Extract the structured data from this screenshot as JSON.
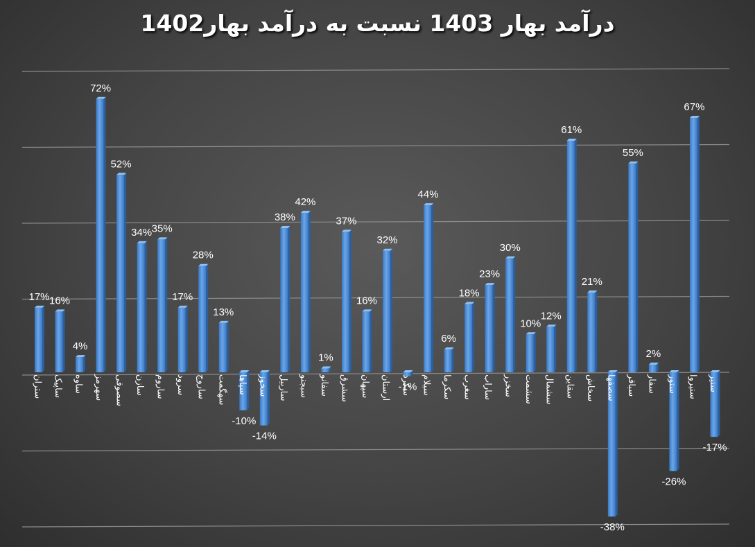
{
  "chart_data": {
    "type": "bar",
    "title": "درآمد بهار 1403 نسبت به درآمد بهار1402",
    "xlabel": "",
    "ylabel": "",
    "ylim": [
      -0.4,
      0.8
    ],
    "grid": true,
    "legend": "none",
    "bar_color": "#4a8fd8",
    "categories": [
      "ستران",
      "ساپیک",
      "ساوه",
      "سهرمز",
      "سصوفی",
      "سازن",
      "ساروم",
      "سرود",
      "ساروج",
      "سهگمت",
      "سپاها",
      "سخوز",
      "ساربیل",
      "سبجنو",
      "سفانو",
      "سشرق",
      "سپهان",
      "ارستان",
      "سکرد",
      "سیلام",
      "سکرما",
      "سغرب",
      "ساراب",
      "سخزر",
      "سشمت",
      "سشمال",
      "سقاین",
      "سخاش",
      "سصفها",
      "سباقر",
      "سفار",
      "ستور",
      "سنیروا",
      "سنیر"
    ],
    "values": [
      0.17,
      0.16,
      0.04,
      0.72,
      0.52,
      0.34,
      0.35,
      0.17,
      0.28,
      0.13,
      -0.1,
      -0.14,
      0.38,
      0.42,
      0.01,
      0.37,
      0.16,
      0.32,
      -0.01,
      0.44,
      0.06,
      0.18,
      0.23,
      0.3,
      0.1,
      0.12,
      0.61,
      0.21,
      -0.38,
      0.55,
      0.02,
      -0.26,
      0.67,
      -0.17
    ],
    "data_labels": [
      "17%",
      "16%",
      "4%",
      "72%",
      "52%",
      "34%",
      "35%",
      "17%",
      "28%",
      "13%",
      "-10%",
      "-14%",
      "38%",
      "42%",
      "1%",
      "37%",
      "16%",
      "32%",
      "-1%",
      "44%",
      "6%",
      "18%",
      "23%",
      "30%",
      "10%",
      "12%",
      "61%",
      "21%",
      "-38%",
      "55%",
      "2%",
      "-26%",
      "67%",
      "-17%"
    ]
  }
}
